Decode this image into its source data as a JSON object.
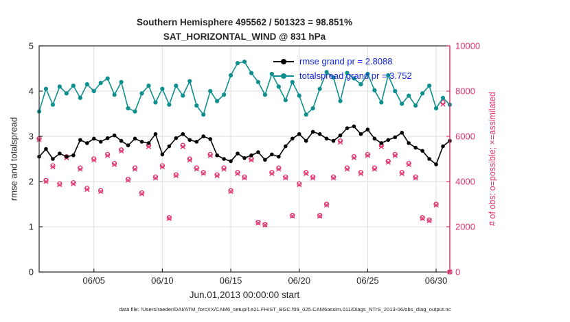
{
  "figure": {
    "datafile": "data file: /Users/raeder/DAI/ATM_forcXX/CAM6_setup/f.e21.FHIST_BGC.f09_025.CAM6assim.011/Diags_NTrS_2013-06/obs_diag_output.nc"
  },
  "stats": {
    "possible_total": 501323,
    "assimilated_total": 495562,
    "assimilated_percent": 98.851,
    "rmse_grand": 2.8088,
    "totalspread_grand": 3.752
  },
  "colors": {
    "rmse": "#000000",
    "totalspread": "#0d8f8f",
    "obs": "#e23270",
    "legend_text": "#1122dd",
    "grid": "#dddddd",
    "axis": "#262626"
  },
  "chart_data": {
    "type": "line",
    "title1": "Southern Hemisphere 495562 / 501323 = 98.851%",
    "title2": "SAT_HORIZONTAL_WIND @ 831 hPa",
    "xlabel": "Jun.01,2013 00:00:00 start",
    "ylabel_left": "rmse and totalspread",
    "ylabel_right": "# of obs: o=possible; ×=assimilated",
    "legend_position": "top-right-inside",
    "grid": true,
    "xlim": [
      1,
      31
    ],
    "ylim_left": [
      0,
      5
    ],
    "ylim_right": [
      0,
      10000
    ],
    "x_ticks": {
      "values": [
        5,
        10,
        15,
        20,
        25,
        30
      ],
      "labels": [
        "06/05",
        "06/10",
        "06/15",
        "06/20",
        "06/25",
        "06/30"
      ]
    },
    "y_ticks_left": {
      "values": [
        0,
        1,
        2,
        3,
        4,
        5
      ],
      "labels": [
        "0",
        "1",
        "2",
        "3",
        "4",
        "5"
      ]
    },
    "y_ticks_right": {
      "values": [
        0,
        2000,
        4000,
        6000,
        8000,
        10000
      ],
      "labels": [
        "0",
        "2000",
        "4000",
        "6000",
        "8000",
        "10000"
      ]
    },
    "x": [
      1,
      1.5,
      2,
      2.5,
      3,
      3.5,
      4,
      4.5,
      5,
      5.5,
      6,
      6.5,
      7,
      7.5,
      8,
      8.5,
      9,
      9.5,
      10,
      10.5,
      11,
      11.5,
      12,
      12.5,
      13,
      13.5,
      14,
      14.5,
      15,
      15.5,
      16,
      16.5,
      17,
      17.5,
      18,
      18.5,
      19,
      19.5,
      20,
      20.5,
      21,
      21.5,
      22,
      22.5,
      23,
      23.5,
      24,
      24.5,
      25,
      25.5,
      26,
      26.5,
      27,
      27.5,
      28,
      28.5,
      29,
      29.5,
      30,
      30.5,
      31
    ],
    "series": [
      {
        "id": "rmse",
        "name": "rmse grand pr = 2.8088",
        "axis": "left",
        "marker": "filled-circle",
        "values": [
          2.55,
          2.72,
          2.5,
          2.62,
          2.55,
          2.58,
          2.92,
          2.85,
          2.95,
          2.88,
          2.96,
          3.02,
          2.9,
          2.8,
          2.95,
          2.88,
          2.85,
          3.05,
          2.6,
          2.78,
          2.96,
          3.05,
          2.92,
          2.88,
          3.0,
          2.94,
          2.58,
          2.5,
          2.45,
          2.62,
          2.52,
          2.58,
          2.65,
          2.48,
          2.6,
          2.55,
          2.78,
          2.95,
          3.05,
          2.9,
          3.1,
          3.05,
          2.95,
          2.9,
          3.02,
          3.18,
          3.22,
          3.05,
          3.15,
          2.95,
          2.85,
          2.92,
          2.98,
          3.08,
          2.85,
          2.75,
          2.68,
          2.5,
          2.38,
          2.78,
          2.9
        ]
      },
      {
        "id": "totalspread",
        "name": "totalspread grand pr = 3.752",
        "axis": "left",
        "marker": "filled-circle",
        "values": [
          3.55,
          4.05,
          3.7,
          4.1,
          3.95,
          4.12,
          3.85,
          4.15,
          4.0,
          4.18,
          4.28,
          3.92,
          4.2,
          3.62,
          3.55,
          3.95,
          4.12,
          3.75,
          4.05,
          3.7,
          4.12,
          3.9,
          4.22,
          3.68,
          3.48,
          4.0,
          3.78,
          3.92,
          4.35,
          4.62,
          4.65,
          4.4,
          4.2,
          3.92,
          4.38,
          4.1,
          3.8,
          4.2,
          3.9,
          3.48,
          3.62,
          4.05,
          4.42,
          4.3,
          3.78,
          4.4,
          4.28,
          4.15,
          4.38,
          4.02,
          3.75,
          4.35,
          4.0,
          3.72,
          3.9,
          3.68,
          3.95,
          4.12,
          3.62,
          3.85,
          3.7
        ]
      },
      {
        "id": "possible",
        "name": "# of obs possible",
        "axis": "right",
        "marker": "open-circle",
        "values": [
          5900,
          4050,
          4700,
          3900,
          5100,
          3950,
          4600,
          3700,
          5000,
          3600,
          5200,
          4800,
          5400,
          4100,
          4600,
          3500,
          5600,
          4200,
          4700,
          2400,
          4300,
          5600,
          5000,
          4600,
          4400,
          5200,
          4300,
          4600,
          3600,
          4400,
          4200,
          5000,
          2200,
          2100,
          4400,
          4600,
          4200,
          2500,
          3900,
          4400,
          4200,
          2500,
          3000,
          4200,
          5800,
          4600,
          5100,
          4400,
          5200,
          4600,
          5600,
          4900,
          5200,
          4400,
          4800,
          4200,
          2400,
          2300,
          3000,
          7500,
          0
        ]
      },
      {
        "id": "assimilated",
        "name": "# of obs assimilated",
        "axis": "right",
        "marker": "x",
        "values": [
          5850,
          4000,
          4650,
          3860,
          5050,
          3900,
          4550,
          3650,
          4950,
          3560,
          5150,
          4750,
          5350,
          4060,
          4550,
          3460,
          5540,
          4160,
          4650,
          2370,
          4260,
          5540,
          4950,
          4550,
          4360,
          5150,
          4260,
          4550,
          3560,
          4350,
          4160,
          4950,
          2170,
          2080,
          4350,
          4550,
          4160,
          2470,
          3860,
          4350,
          4160,
          2470,
          2960,
          4160,
          5740,
          4550,
          5050,
          4350,
          5150,
          4550,
          5540,
          4850,
          5150,
          4350,
          4750,
          4160,
          2370,
          2270,
          2960,
          7420,
          0
        ]
      }
    ]
  }
}
